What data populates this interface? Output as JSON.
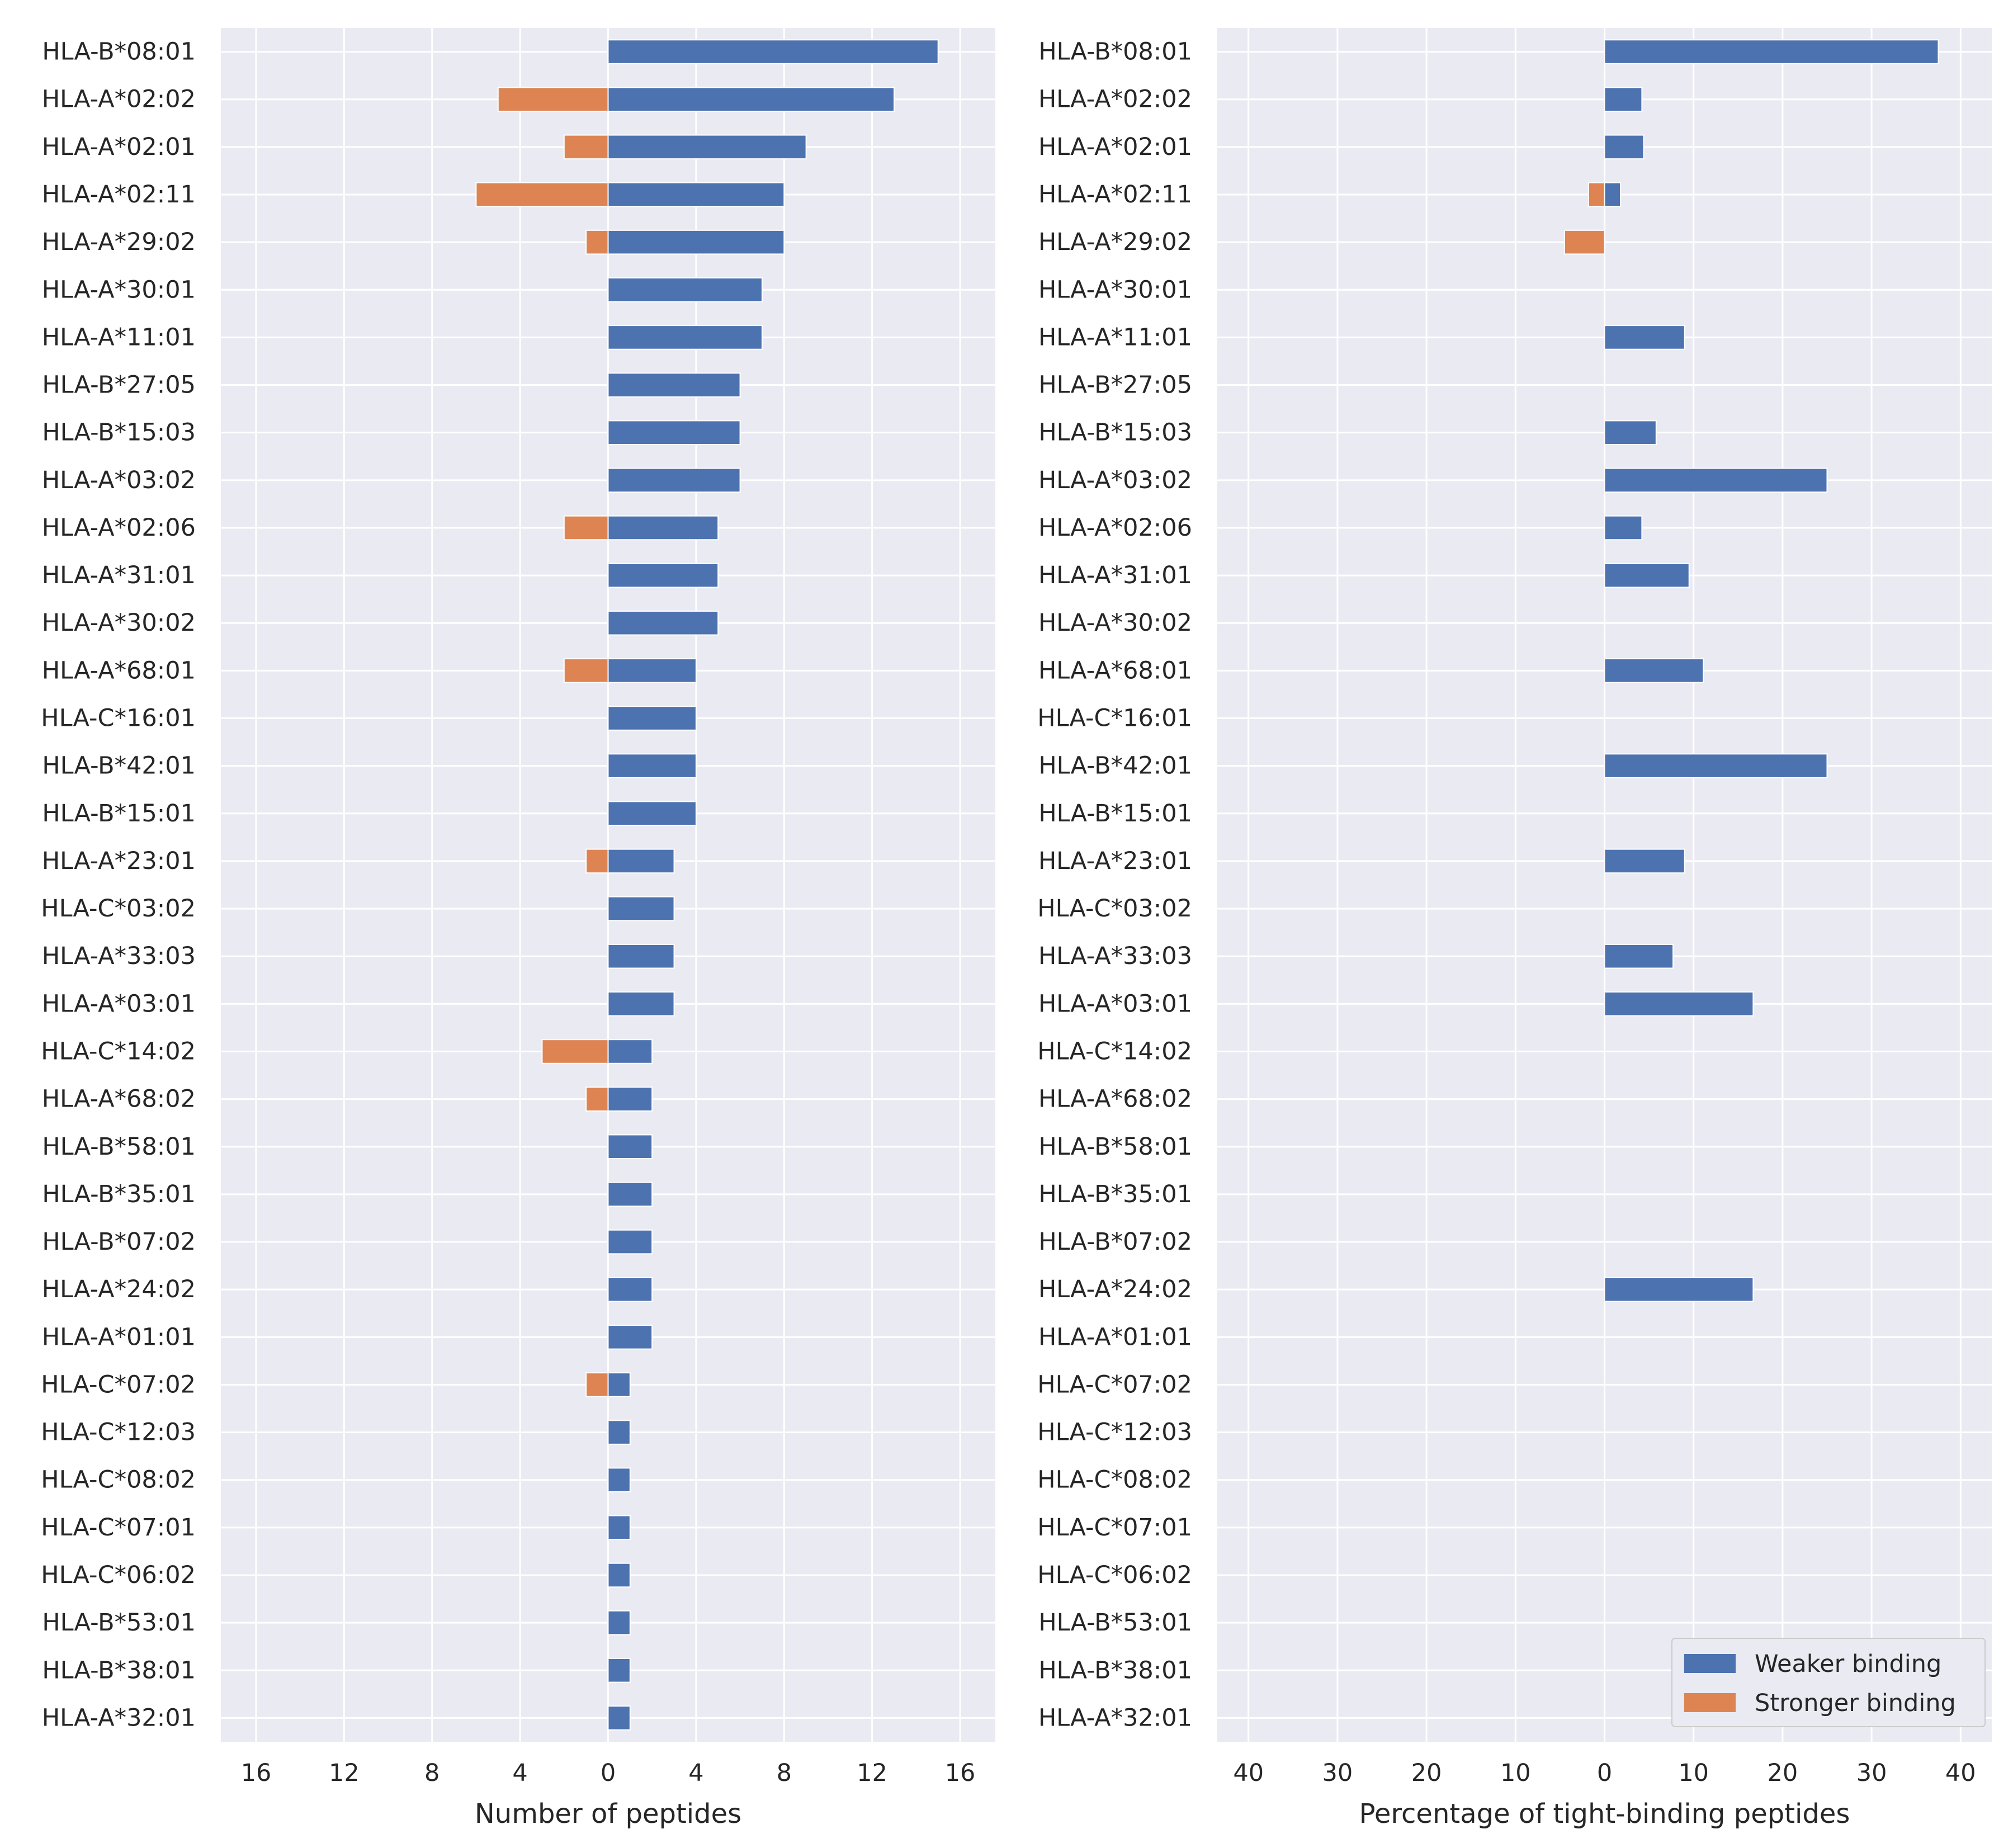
{
  "chart_data": [
    {
      "type": "bar",
      "orientation": "horizontal",
      "title": "",
      "xlabel": "Number of peptides",
      "ylabel": "",
      "xlim": [
        -17.6,
        17.6
      ],
      "xticks": [
        -16,
        -12,
        -8,
        -4,
        0,
        4,
        8,
        12,
        16
      ],
      "xtick_labels": [
        "16",
        "12",
        "8",
        "4",
        "0",
        "4",
        "8",
        "12",
        "16"
      ],
      "grid": true,
      "categories": [
        "HLA-B*08:01",
        "HLA-A*02:02",
        "HLA-A*02:01",
        "HLA-A*02:11",
        "HLA-A*29:02",
        "HLA-A*30:01",
        "HLA-A*11:01",
        "HLA-B*27:05",
        "HLA-B*15:03",
        "HLA-A*03:02",
        "HLA-A*02:06",
        "HLA-A*31:01",
        "HLA-A*30:02",
        "HLA-A*68:01",
        "HLA-C*16:01",
        "HLA-B*42:01",
        "HLA-B*15:01",
        "HLA-A*23:01",
        "HLA-C*03:02",
        "HLA-A*33:03",
        "HLA-A*03:01",
        "HLA-C*14:02",
        "HLA-A*68:02",
        "HLA-B*58:01",
        "HLA-B*35:01",
        "HLA-B*07:02",
        "HLA-A*24:02",
        "HLA-A*01:01",
        "HLA-C*07:02",
        "HLA-C*12:03",
        "HLA-C*08:02",
        "HLA-C*07:01",
        "HLA-C*06:02",
        "HLA-B*53:01",
        "HLA-B*38:01",
        "HLA-A*32:01"
      ],
      "series": [
        {
          "name": "Weaker binding",
          "color": "#4c72b0",
          "direction": "right",
          "values": [
            15,
            13,
            9,
            8,
            8,
            7,
            7,
            6,
            6,
            6,
            5,
            5,
            5,
            4,
            4,
            4,
            4,
            3,
            3,
            3,
            3,
            2,
            2,
            2,
            2,
            2,
            2,
            2,
            1,
            1,
            1,
            1,
            1,
            1,
            1,
            1
          ]
        },
        {
          "name": "Stronger binding",
          "color": "#dd8452",
          "direction": "left",
          "values": [
            0,
            5,
            2,
            6,
            1,
            0,
            0,
            0,
            0,
            0,
            2,
            0,
            0,
            2,
            0,
            0,
            0,
            1,
            0,
            0,
            0,
            3,
            1,
            0,
            0,
            0,
            0,
            0,
            1,
            0,
            0,
            0,
            0,
            0,
            0,
            0
          ]
        }
      ]
    },
    {
      "type": "bar",
      "orientation": "horizontal",
      "title": "",
      "xlabel": "Percentage of tight-binding peptides",
      "ylabel": "",
      "xlim": [
        -43.5,
        43.5
      ],
      "xticks": [
        -40,
        -30,
        -20,
        -10,
        0,
        10,
        20,
        30,
        40
      ],
      "xtick_labels": [
        "40",
        "30",
        "20",
        "10",
        "0",
        "10",
        "20",
        "30",
        "40"
      ],
      "grid": true,
      "legend_position": "bottom-right",
      "categories": [
        "HLA-B*08:01",
        "HLA-A*02:02",
        "HLA-A*02:01",
        "HLA-A*02:11",
        "HLA-A*29:02",
        "HLA-A*30:01",
        "HLA-A*11:01",
        "HLA-B*27:05",
        "HLA-B*15:03",
        "HLA-A*03:02",
        "HLA-A*02:06",
        "HLA-A*31:01",
        "HLA-A*30:02",
        "HLA-A*68:01",
        "HLA-C*16:01",
        "HLA-B*42:01",
        "HLA-B*15:01",
        "HLA-A*23:01",
        "HLA-C*03:02",
        "HLA-A*33:03",
        "HLA-A*03:01",
        "HLA-C*14:02",
        "HLA-A*68:02",
        "HLA-B*58:01",
        "HLA-B*35:01",
        "HLA-B*07:02",
        "HLA-A*24:02",
        "HLA-A*01:01",
        "HLA-C*07:02",
        "HLA-C*12:03",
        "HLA-C*08:02",
        "HLA-C*07:01",
        "HLA-C*06:02",
        "HLA-B*53:01",
        "HLA-B*38:01",
        "HLA-A*32:01"
      ],
      "series": [
        {
          "name": "Weaker binding",
          "color": "#4c72b0",
          "direction": "right",
          "values": [
            37.5,
            4.2,
            4.4,
            1.8,
            0,
            0,
            9.0,
            0,
            5.8,
            25.0,
            4.2,
            9.5,
            0,
            11.1,
            0,
            25.0,
            0,
            9.0,
            0,
            7.7,
            16.7,
            0,
            0,
            0,
            0,
            0,
            16.7,
            0,
            0,
            0,
            0,
            0,
            0,
            0,
            0,
            0
          ]
        },
        {
          "name": "Stronger binding",
          "color": "#dd8452",
          "direction": "left",
          "values": [
            0,
            0,
            0,
            1.8,
            4.5,
            0,
            0,
            0,
            0,
            0,
            0,
            0,
            0,
            0,
            0,
            0,
            0,
            0,
            0,
            0,
            0,
            0,
            0,
            0,
            0,
            0,
            0,
            0,
            0,
            0,
            0,
            0,
            0,
            0,
            0,
            0
          ]
        }
      ]
    }
  ],
  "legend": {
    "items": [
      {
        "label": "Weaker binding",
        "color": "#4c72b0"
      },
      {
        "label": "Stronger binding",
        "color": "#dd8452"
      }
    ]
  }
}
